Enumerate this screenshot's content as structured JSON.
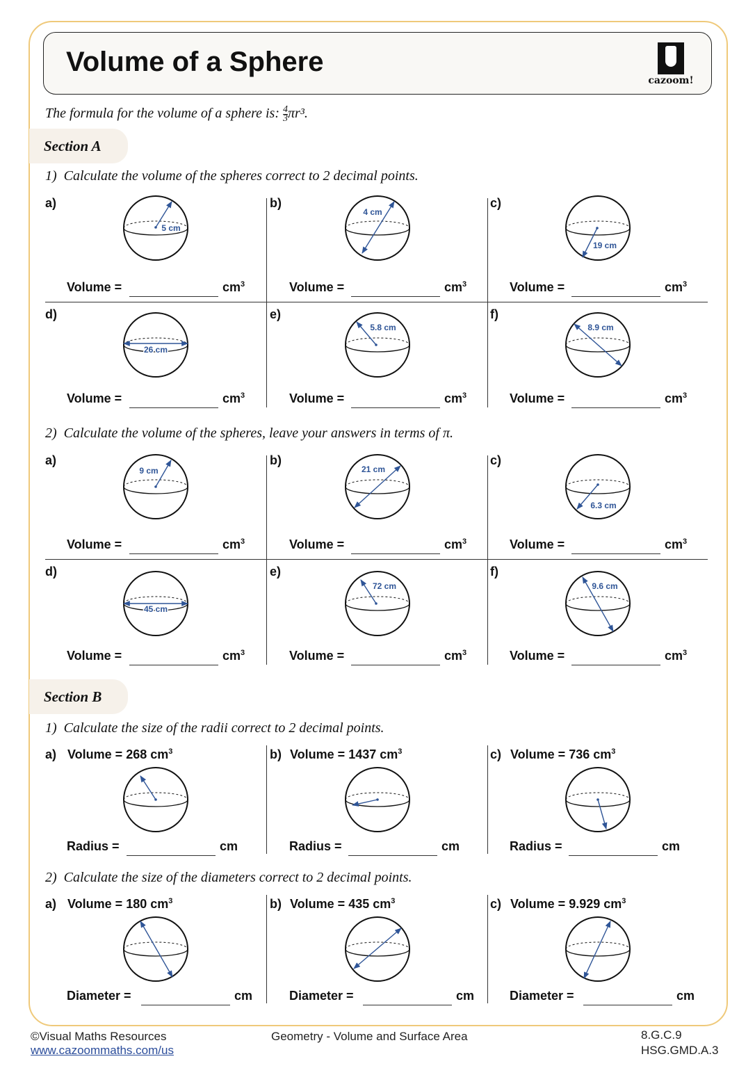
{
  "header": {
    "title": "Volume of a Sphere",
    "logo_text": "cazoom!"
  },
  "formula": {
    "text": "The formula for the volume of a sphere is:",
    "frac_num": "4",
    "frac_den": "3",
    "rest": "πr³."
  },
  "section_a": {
    "title": "Section A",
    "q1": {
      "number": "1)",
      "text": "Calculate the volume of the spheres correct to 2 decimal points.",
      "items": [
        {
          "letter": "a)",
          "measure": "5 cm"
        },
        {
          "letter": "b)",
          "measure": "4 cm"
        },
        {
          "letter": "c)",
          "measure": "19 cm"
        },
        {
          "letter": "d)",
          "measure": "26 cm"
        },
        {
          "letter": "e)",
          "measure": "5.8 cm"
        },
        {
          "letter": "f)",
          "measure": "8.9 cm"
        }
      ]
    },
    "q2": {
      "number": "2)",
      "text": "Calculate the volume of the spheres, leave your answers in terms of π.",
      "items": [
        {
          "letter": "a)",
          "measure": "9 cm"
        },
        {
          "letter": "b)",
          "measure": "21 cm"
        },
        {
          "letter": "c)",
          "measure": "6.3 cm"
        },
        {
          "letter": "d)",
          "measure": "45 cm"
        },
        {
          "letter": "e)",
          "measure": "72 cm"
        },
        {
          "letter": "f)",
          "measure": "9.6 cm"
        }
      ]
    },
    "answer_label": "Volume =",
    "unit": "cm",
    "unit_power": "3"
  },
  "section_b": {
    "title": "Section B",
    "q1": {
      "number": "1)",
      "text": "Calculate the size of the radii correct to 2 decimal points.",
      "answer_label": "Radius =",
      "unit": "cm",
      "items": [
        {
          "letter": "a)",
          "given": "Volume = 268 cm"
        },
        {
          "letter": "b)",
          "given": "Volume = 1437 cm"
        },
        {
          "letter": "c)",
          "given": "Volume = 736 cm"
        }
      ]
    },
    "q2": {
      "number": "2)",
      "text": "Calculate the size of the diameters correct to 2 decimal points.",
      "answer_label": "Diameter =",
      "unit": "cm",
      "items": [
        {
          "letter": "a)",
          "given": "Volume = 180 cm"
        },
        {
          "letter": "b)",
          "given": "Volume = 435 cm"
        },
        {
          "letter": "c)",
          "given": "Volume = 9.929 cm"
        }
      ]
    },
    "given_power": "3"
  },
  "footer": {
    "copyright": "©Visual Maths Resources",
    "link": "www.cazoommaths.com/us",
    "topic": "Geometry - Volume and Surface Area",
    "standard1": "8.G.C.9",
    "standard2": "HSG.GMD.A.3"
  },
  "colors": {
    "accent": "#2f5597",
    "frame": "#efc97a",
    "section_bg": "#f6f1ea"
  }
}
